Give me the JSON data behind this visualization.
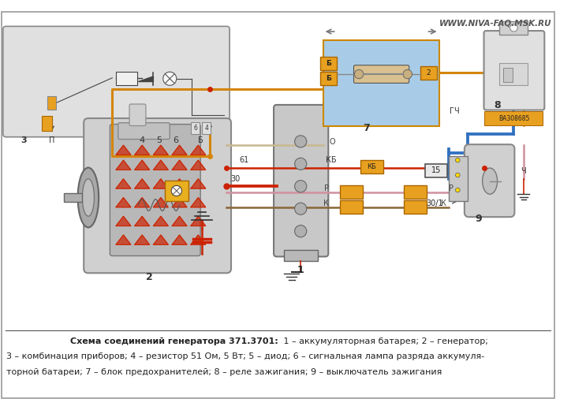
{
  "watermark": "WWW.NIVA-FAQ.MSK.RU",
  "caption_bold": "Схема соединений генератора 371.3701:",
  "caption_reg1": " 1 – аккумуляторная батарея; 2 – генератор;",
  "caption_reg2": "3 – комбинация приборов; 4 – резистор 51 Ом, 5 Вт; 5 – диод; 6 – сигнальная лампа разряда аккумуля-",
  "caption_reg3": "торной батареи; 7 – блок предохранителей; 8 – реле зажигания; 9 – выключатель зажигания",
  "bg_color": "#ffffff",
  "fig_width": 7.43,
  "fig_height": 5.2,
  "dpi": 100,
  "orange": "#D4850A",
  "red": "#CC2200",
  "blue": "#3070C0",
  "pink": "#D090A0",
  "brown": "#8B6535",
  "gray": "#999999",
  "fuse_fill": "#E8A020",
  "fuse_edge": "#AA6600"
}
